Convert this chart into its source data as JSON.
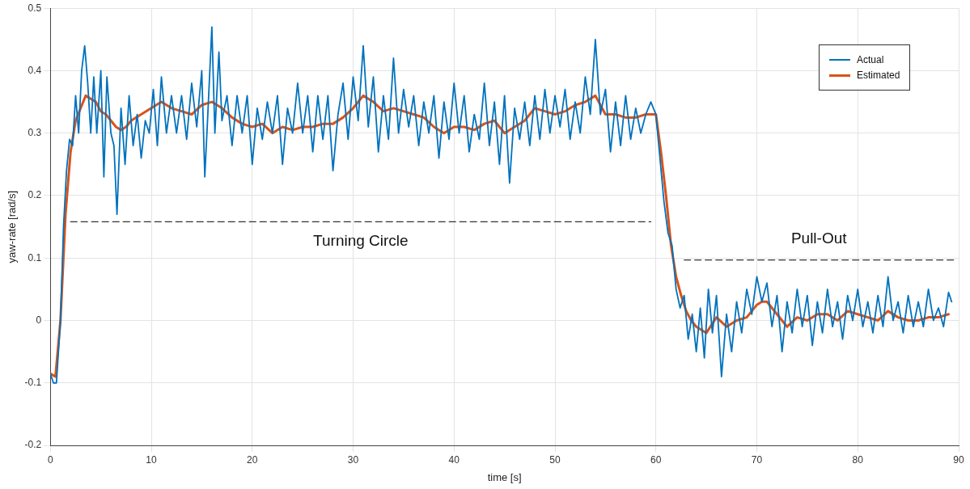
{
  "chart_data": {
    "type": "line",
    "xlabel": "time [s]",
    "ylabel": "yaw-rate [rad/s]",
    "xlim": [
      0,
      90
    ],
    "xticks": [
      0,
      10,
      20,
      30,
      40,
      50,
      60,
      70,
      80,
      90
    ],
    "ylim": [
      -0.2,
      0.5
    ],
    "yticks": [
      -0.2,
      -0.1,
      0,
      0.1,
      0.2,
      0.3,
      0.4,
      0.5
    ],
    "grid": true,
    "legend": "top right",
    "marker": "none",
    "series": [
      {
        "name": "Actual",
        "color": "#0072bd",
        "x": [
          0,
          0.3,
          0.6,
          1.0,
          1.3,
          1.6,
          1.9,
          2.2,
          2.5,
          2.8,
          3.1,
          3.4,
          3.7,
          4.0,
          4.3,
          4.6,
          5.0,
          5.3,
          5.6,
          6.0,
          6.3,
          6.6,
          7.0,
          7.4,
          7.8,
          8.2,
          8.6,
          9.0,
          9.4,
          9.8,
          10.2,
          10.6,
          11.0,
          11.5,
          12,
          12.5,
          13,
          13.5,
          14,
          14.5,
          15,
          15.3,
          15.6,
          16,
          16.3,
          16.7,
          17,
          17.5,
          18,
          18.5,
          19,
          19.5,
          20,
          20.5,
          21,
          21.5,
          22,
          22.5,
          23,
          23.5,
          24,
          24.5,
          25,
          25.5,
          26,
          26.5,
          27,
          27.5,
          28,
          28.5,
          29,
          29.5,
          30,
          30.5,
          31,
          31.5,
          32,
          32.5,
          33,
          33.5,
          34,
          34.5,
          35,
          35.5,
          36,
          36.5,
          37,
          37.5,
          38,
          38.5,
          39,
          39.5,
          40,
          40.5,
          41,
          41.5,
          42,
          42.5,
          43,
          43.5,
          44,
          44.5,
          45,
          45.5,
          46,
          46.5,
          47,
          47.5,
          48,
          48.5,
          49,
          49.5,
          50,
          50.5,
          51,
          51.5,
          52,
          52.5,
          53,
          53.5,
          54,
          54.5,
          55,
          55.5,
          56,
          56.5,
          57,
          57.5,
          58,
          58.5,
          59,
          59.5,
          60,
          60.4,
          60.8,
          61.2,
          61.6,
          62,
          62.4,
          62.8,
          63.2,
          63.6,
          64,
          64.4,
          64.8,
          65.2,
          65.6,
          66,
          66.5,
          67,
          67.5,
          68,
          68.5,
          69,
          69.5,
          70,
          70.5,
          71,
          71.5,
          72,
          72.5,
          73,
          73.5,
          74,
          74.5,
          75,
          75.5,
          76,
          76.5,
          77,
          77.5,
          78,
          78.5,
          79,
          79.5,
          80,
          80.5,
          81,
          81.5,
          82,
          82.5,
          83,
          83.5,
          84,
          84.5,
          85,
          85.5,
          86,
          86.5,
          87,
          87.5,
          88,
          88.5,
          89,
          89.3
        ],
        "values": [
          -0.085,
          -0.1,
          -0.1,
          0.0,
          0.15,
          0.24,
          0.29,
          0.28,
          0.36,
          0.3,
          0.4,
          0.44,
          0.38,
          0.3,
          0.39,
          0.3,
          0.4,
          0.23,
          0.39,
          0.3,
          0.28,
          0.17,
          0.34,
          0.25,
          0.36,
          0.28,
          0.33,
          0.26,
          0.32,
          0.3,
          0.37,
          0.28,
          0.39,
          0.3,
          0.36,
          0.3,
          0.36,
          0.29,
          0.38,
          0.31,
          0.4,
          0.23,
          0.33,
          0.47,
          0.3,
          0.43,
          0.32,
          0.36,
          0.28,
          0.36,
          0.3,
          0.36,
          0.25,
          0.34,
          0.29,
          0.35,
          0.3,
          0.36,
          0.25,
          0.34,
          0.3,
          0.38,
          0.3,
          0.36,
          0.27,
          0.36,
          0.29,
          0.36,
          0.24,
          0.33,
          0.38,
          0.29,
          0.39,
          0.32,
          0.44,
          0.31,
          0.39,
          0.27,
          0.36,
          0.29,
          0.42,
          0.3,
          0.37,
          0.31,
          0.36,
          0.28,
          0.35,
          0.3,
          0.36,
          0.26,
          0.35,
          0.29,
          0.38,
          0.3,
          0.36,
          0.27,
          0.33,
          0.29,
          0.38,
          0.28,
          0.35,
          0.25,
          0.36,
          0.22,
          0.34,
          0.29,
          0.35,
          0.28,
          0.36,
          0.29,
          0.37,
          0.3,
          0.36,
          0.31,
          0.37,
          0.29,
          0.35,
          0.3,
          0.39,
          0.33,
          0.45,
          0.33,
          0.37,
          0.27,
          0.35,
          0.28,
          0.36,
          0.29,
          0.34,
          0.3,
          0.33,
          0.35,
          0.33,
          0.26,
          0.19,
          0.14,
          0.12,
          0.05,
          0.02,
          0.04,
          -0.03,
          0.01,
          -0.05,
          0.02,
          -0.06,
          0.05,
          -0.02,
          0.04,
          -0.09,
          0.01,
          -0.05,
          0.03,
          -0.02,
          0.05,
          0.01,
          0.07,
          0.03,
          0.06,
          -0.01,
          0.04,
          -0.05,
          0.03,
          -0.02,
          0.05,
          -0.01,
          0.04,
          -0.04,
          0.03,
          -0.02,
          0.05,
          -0.01,
          0.03,
          -0.03,
          0.04,
          0.0,
          0.05,
          -0.01,
          0.03,
          -0.02,
          0.04,
          -0.01,
          0.07,
          0.0,
          0.03,
          -0.02,
          0.04,
          -0.01,
          0.03,
          -0.01,
          0.05,
          0.0,
          0.02,
          -0.01,
          0.045,
          0.03
        ]
      },
      {
        "name": "Estimated",
        "color": "#d95319",
        "x": [
          0,
          0.5,
          1,
          1.5,
          2,
          2.5,
          3,
          3.5,
          4,
          4.5,
          5,
          5.5,
          6,
          6.5,
          7,
          7.5,
          8,
          9,
          10,
          11,
          12,
          13,
          14,
          15,
          16,
          17,
          18,
          19,
          20,
          21,
          22,
          23,
          24,
          25,
          26,
          27,
          28,
          29,
          30,
          31,
          32,
          33,
          34,
          35,
          36,
          37,
          38,
          39,
          40,
          41,
          42,
          43,
          44,
          45,
          46,
          47,
          48,
          49,
          50,
          51,
          52,
          53,
          54,
          55,
          56,
          57,
          58,
          59,
          60,
          60.5,
          61,
          61.5,
          62,
          62.5,
          63,
          63.5,
          64,
          65,
          66,
          67,
          68,
          69,
          70,
          70.5,
          71,
          72,
          73,
          74,
          75,
          76,
          77,
          78,
          79,
          80,
          81,
          82,
          83,
          84,
          85,
          86,
          87,
          88,
          89
        ],
        "values": [
          -0.085,
          -0.09,
          0.0,
          0.17,
          0.27,
          0.32,
          0.34,
          0.36,
          0.355,
          0.35,
          0.335,
          0.33,
          0.32,
          0.31,
          0.305,
          0.31,
          0.32,
          0.33,
          0.34,
          0.35,
          0.34,
          0.335,
          0.33,
          0.345,
          0.35,
          0.34,
          0.325,
          0.315,
          0.31,
          0.315,
          0.3,
          0.31,
          0.305,
          0.31,
          0.31,
          0.315,
          0.315,
          0.325,
          0.34,
          0.36,
          0.35,
          0.335,
          0.34,
          0.335,
          0.33,
          0.325,
          0.31,
          0.3,
          0.31,
          0.31,
          0.305,
          0.315,
          0.32,
          0.3,
          0.31,
          0.32,
          0.34,
          0.335,
          0.33,
          0.335,
          0.345,
          0.35,
          0.36,
          0.33,
          0.33,
          0.325,
          0.325,
          0.33,
          0.33,
          0.27,
          0.2,
          0.12,
          0.07,
          0.04,
          0.015,
          0.0,
          -0.01,
          -0.02,
          0.005,
          -0.01,
          0.0,
          0.005,
          0.025,
          0.03,
          0.03,
          0.01,
          -0.01,
          0.005,
          0.0,
          0.01,
          0.01,
          0.0,
          0.015,
          0.01,
          0.005,
          0.0,
          0.015,
          0.005,
          0.0,
          0.0,
          0.005,
          0.005,
          0.01
        ]
      },
      {
        "color": "#333333",
        "line_style": "dashed",
        "x": [
          2,
          59.5
        ],
        "values": [
          0.158,
          0.158
        ]
      },
      {
        "color": "#333333",
        "line_style": "dashed",
        "x": [
          62.8,
          89.5
        ],
        "values": [
          0.097,
          0.097
        ]
      }
    ],
    "annotations": [
      "Turning Circle",
      "Pull-Out"
    ]
  }
}
